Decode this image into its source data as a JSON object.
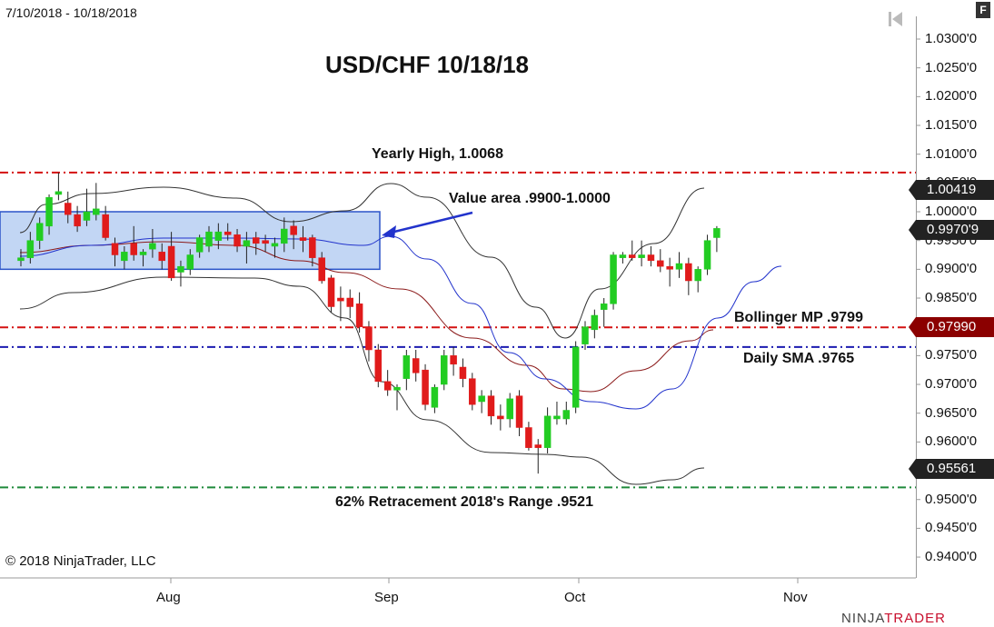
{
  "header": {
    "date_range": "7/10/2018 - 10/18/2018",
    "title": "USD/CHF 10/18/18",
    "copyright": "© 2018 NinjaTrader, LLC",
    "brand_left": "NINJA",
    "brand_right": "TRADER",
    "f_button": "F"
  },
  "annotations": {
    "yearly_high": "Yearly High, 1.0068",
    "value_area": "Value area .9900-1.0000",
    "bollinger_mp": "Bollinger MP .9799",
    "daily_sma": "Daily SMA .9765",
    "retracement": "62% Retracement 2018's Range .9521"
  },
  "price_tags": {
    "upper_band": "1.00419",
    "last_price": "0.9970'9",
    "midpoint": "0.97990",
    "lower_band": "0.95561"
  },
  "colors": {
    "up_candle": "#22cc22",
    "down_candle": "#e01b1b",
    "sma": "#2233cc",
    "bollinger_mid": "#8b1a1a",
    "bollinger_band": "#333333",
    "red_line": "#d41111",
    "blue_line": "#1c1cb0",
    "green_line": "#1f8a3b",
    "value_area_fill": "#aec8f0"
  },
  "icons": {
    "skip": "skip-back-icon"
  },
  "chart_data": {
    "type": "candlestick",
    "y_ticks": [
      "1.0300'0",
      "1.0250'0",
      "1.0200'0",
      "1.0150'0",
      "1.0100'0",
      "1.0050'0",
      "1.0000'0",
      "0.9950'0",
      "0.9900'0",
      "0.9850'0",
      "0.9800'0",
      "0.9750'0",
      "0.9700'0",
      "0.9650'0",
      "0.9600'0",
      "0.9550'0",
      "0.9500'0",
      "0.9450'0",
      "0.9400'0"
    ],
    "x_ticks": [
      "Aug",
      "Sep",
      "Oct",
      "Nov"
    ],
    "ylim": [
      0.937,
      1.034
    ],
    "horizontal_lines": [
      {
        "name": "yearly-high",
        "value": 1.0068,
        "style": "red-dashdot"
      },
      {
        "name": "bollinger-mp",
        "value": 0.9799,
        "style": "red-dashdot"
      },
      {
        "name": "daily-sma",
        "value": 0.9765,
        "style": "blue-dashdot"
      },
      {
        "name": "retracement",
        "value": 0.9521,
        "style": "green-dashdot"
      }
    ],
    "value_area": {
      "low": 0.99,
      "high": 1.0
    },
    "candles": [
      [
        0.9915,
        0.9935,
        0.9905,
        0.992
      ],
      [
        0.992,
        0.9965,
        0.991,
        0.995
      ],
      [
        0.995,
        0.999,
        0.9935,
        0.998
      ],
      [
        0.9975,
        1.003,
        0.996,
        1.0025
      ],
      [
        1.003,
        1.0068,
        1.002,
        1.0035
      ],
      [
        1.0015,
        1.0035,
        0.998,
        0.9995
      ],
      [
        0.9995,
        1.001,
        0.9965,
        0.9975
      ],
      [
        0.9985,
        1.004,
        0.9975,
        1.0
      ],
      [
        0.9995,
        1.005,
        0.9985,
        1.0005
      ],
      [
        0.9995,
        1.001,
        0.995,
        0.9955
      ],
      [
        0.9945,
        0.9955,
        0.9905,
        0.9925
      ],
      [
        0.9915,
        0.994,
        0.99,
        0.993
      ],
      [
        0.9945,
        0.9975,
        0.9915,
        0.9925
      ],
      [
        0.9925,
        0.9935,
        0.9905,
        0.993
      ],
      [
        0.9935,
        0.997,
        0.992,
        0.9945
      ],
      [
        0.993,
        0.9945,
        0.99,
        0.9915
      ],
      [
        0.994,
        0.9965,
        0.988,
        0.9885
      ],
      [
        0.9895,
        0.9915,
        0.987,
        0.9905
      ],
      [
        0.99,
        0.9935,
        0.989,
        0.9925
      ],
      [
        0.993,
        0.996,
        0.992,
        0.9955
      ],
      [
        0.994,
        0.9975,
        0.993,
        0.9965
      ],
      [
        0.995,
        0.998,
        0.9935,
        0.9965
      ],
      [
        0.9965,
        0.998,
        0.995,
        0.996
      ],
      [
        0.996,
        0.997,
        0.993,
        0.994
      ],
      [
        0.994,
        0.9965,
        0.991,
        0.995
      ],
      [
        0.9955,
        0.9965,
        0.9925,
        0.9945
      ],
      [
        0.995,
        0.996,
        0.993,
        0.9945
      ],
      [
        0.994,
        0.9955,
        0.992,
        0.9945
      ],
      [
        0.9945,
        0.999,
        0.993,
        0.997
      ],
      [
        0.9975,
        0.9985,
        0.9935,
        0.996
      ],
      [
        0.9955,
        0.9975,
        0.993,
        0.995
      ],
      [
        0.9955,
        0.996,
        0.9905,
        0.992
      ],
      [
        0.992,
        0.993,
        0.9875,
        0.988
      ],
      [
        0.9885,
        0.989,
        0.9825,
        0.9835
      ],
      [
        0.985,
        0.987,
        0.981,
        0.9845
      ],
      [
        0.985,
        0.9865,
        0.9815,
        0.9835
      ],
      [
        0.984,
        0.986,
        0.979,
        0.98
      ],
      [
        0.98,
        0.981,
        0.974,
        0.976
      ],
      [
        0.976,
        0.977,
        0.9695,
        0.9705
      ],
      [
        0.9705,
        0.9725,
        0.968,
        0.969
      ],
      [
        0.969,
        0.97,
        0.9655,
        0.9695
      ],
      [
        0.971,
        0.976,
        0.969,
        0.975
      ],
      [
        0.9745,
        0.976,
        0.9705,
        0.972
      ],
      [
        0.9725,
        0.9735,
        0.9655,
        0.9665
      ],
      [
        0.966,
        0.97,
        0.965,
        0.9695
      ],
      [
        0.97,
        0.976,
        0.969,
        0.975
      ],
      [
        0.975,
        0.9765,
        0.9715,
        0.9735
      ],
      [
        0.973,
        0.9745,
        0.9695,
        0.971
      ],
      [
        0.971,
        0.972,
        0.9655,
        0.9665
      ],
      [
        0.967,
        0.969,
        0.965,
        0.968
      ],
      [
        0.968,
        0.969,
        0.963,
        0.9645
      ],
      [
        0.9645,
        0.9665,
        0.962,
        0.964
      ],
      [
        0.964,
        0.9685,
        0.9625,
        0.9675
      ],
      [
        0.968,
        0.969,
        0.961,
        0.9625
      ],
      [
        0.9625,
        0.9635,
        0.9585,
        0.959
      ],
      [
        0.9595,
        0.9605,
        0.9545,
        0.959
      ],
      [
        0.959,
        0.966,
        0.958,
        0.9645
      ],
      [
        0.964,
        0.967,
        0.963,
        0.9645
      ],
      [
        0.964,
        0.967,
        0.963,
        0.9655
      ],
      [
        0.966,
        0.9775,
        0.965,
        0.9765
      ],
      [
        0.977,
        0.981,
        0.976,
        0.98
      ],
      [
        0.9795,
        0.983,
        0.978,
        0.982
      ],
      [
        0.983,
        0.985,
        0.98,
        0.984
      ],
      [
        0.984,
        0.993,
        0.983,
        0.9925
      ],
      [
        0.992,
        0.993,
        0.991,
        0.9925
      ],
      [
        0.9925,
        0.995,
        0.9915,
        0.992
      ],
      [
        0.992,
        0.995,
        0.9905,
        0.9925
      ],
      [
        0.9925,
        0.994,
        0.9905,
        0.9915
      ],
      [
        0.9915,
        0.9935,
        0.9895,
        0.9905
      ],
      [
        0.9905,
        0.992,
        0.987,
        0.99
      ],
      [
        0.99,
        0.993,
        0.9885,
        0.991
      ],
      [
        0.991,
        0.992,
        0.9855,
        0.988
      ],
      [
        0.988,
        0.9905,
        0.986,
        0.99
      ],
      [
        0.99,
        0.996,
        0.989,
        0.995
      ],
      [
        0.9955,
        0.9975,
        0.993,
        0.9971
      ]
    ]
  }
}
